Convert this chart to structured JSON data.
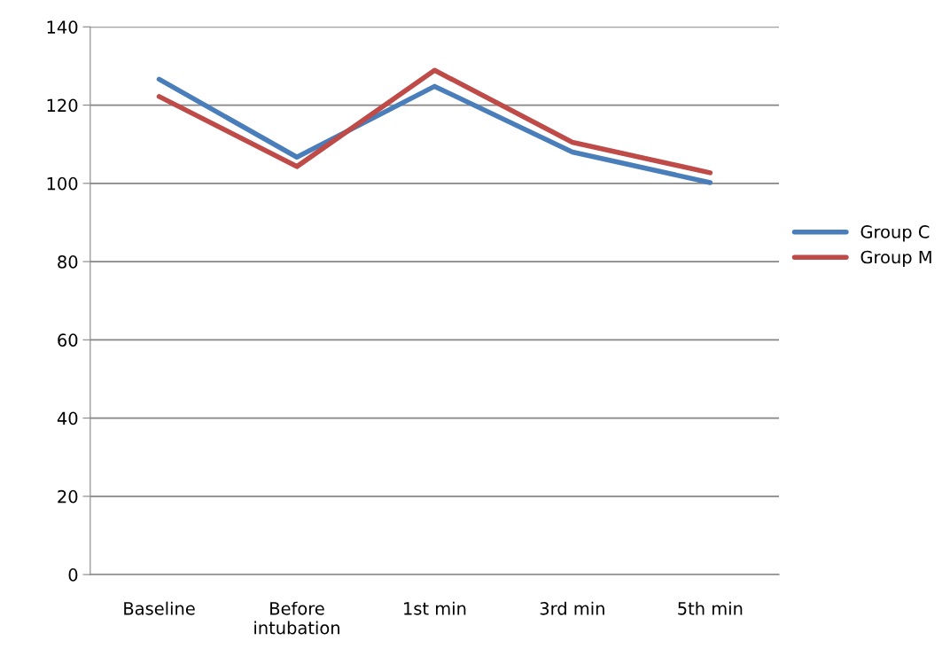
{
  "chart_data": {
    "type": "line",
    "categories": [
      "Baseline",
      "Before\nintubation",
      "1st min",
      "3rd min",
      "5th min"
    ],
    "series": [
      {
        "name": "Group C",
        "color": "#4a7ebb",
        "values": [
          126.6,
          106.7,
          124.8,
          108,
          100.2
        ]
      },
      {
        "name": "Group M",
        "color": "#be4b48",
        "values": [
          122.2,
          104.3,
          128.9,
          110.5,
          102.7
        ]
      }
    ],
    "ylim": [
      0,
      140
    ],
    "yticks": [
      0,
      20,
      40,
      60,
      80,
      100,
      120,
      140
    ],
    "grid": "y",
    "legend": "right",
    "marker": "none",
    "line_style": "solid"
  }
}
